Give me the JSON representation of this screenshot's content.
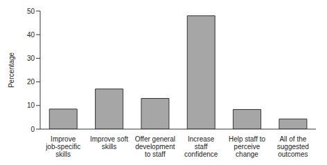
{
  "chart_data": {
    "type": "bar",
    "y_label": "Percentage",
    "categories": [
      "Improve job-specific skills",
      "Improve soft skills",
      "Offer general development to staff",
      "Increase staff confidence",
      "Help staff to perceive change",
      "All of the suggested outcomes"
    ],
    "values": [
      8.5,
      17,
      13,
      48,
      8.3,
      4.3
    ],
    "color": "#a6a6a6",
    "ylim": [
      0,
      50
    ],
    "yticks": [
      0,
      10,
      20,
      30,
      40,
      50
    ],
    "grid": false
  }
}
